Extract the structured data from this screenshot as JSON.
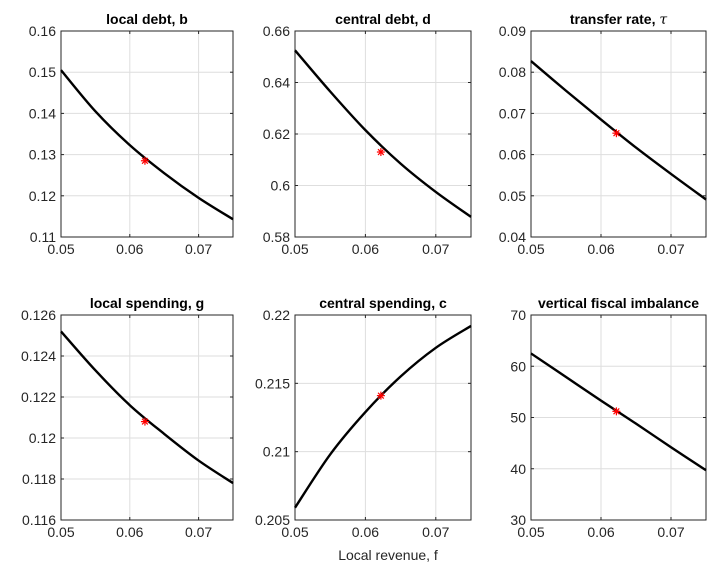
{
  "figure": {
    "xlabel": "Local revenue, f"
  },
  "chart_data": [
    {
      "type": "line",
      "title": "local debt, b",
      "title_math": "",
      "xlim": [
        0.05,
        0.075
      ],
      "ylim": [
        0.11,
        0.16
      ],
      "xticks": [
        "0.05",
        "0.06",
        "0.07"
      ],
      "xtick_values": [
        0.05,
        0.06,
        0.07
      ],
      "yticks": [
        "0.11",
        "0.12",
        "0.13",
        "0.14",
        "0.15",
        "0.16"
      ],
      "ytick_values": [
        0.11,
        0.12,
        0.13,
        0.14,
        0.15,
        0.16
      ],
      "grid": true,
      "series": [
        {
          "x": [
            0.05,
            0.055,
            0.06,
            0.065,
            0.07,
            0.075
          ],
          "y": [
            0.1505,
            0.1405,
            0.1323,
            0.1255,
            0.1195,
            0.1143
          ],
          "color": "#000000"
        }
      ],
      "marker": {
        "x": 0.0622,
        "y": 0.1285,
        "symbol": "*",
        "color": "#ff0000"
      }
    },
    {
      "type": "line",
      "title": "central debt, d",
      "title_math": "",
      "xlim": [
        0.05,
        0.075
      ],
      "ylim": [
        0.58,
        0.66
      ],
      "xticks": [
        "0.05",
        "0.06",
        "0.07"
      ],
      "xtick_values": [
        0.05,
        0.06,
        0.07
      ],
      "yticks": [
        "0.58",
        "0.6",
        "0.62",
        "0.64",
        "0.66"
      ],
      "ytick_values": [
        0.58,
        0.6,
        0.62,
        0.64,
        0.66
      ],
      "grid": true,
      "series": [
        {
          "x": [
            0.05,
            0.055,
            0.06,
            0.065,
            0.07,
            0.075
          ],
          "y": [
            0.6525,
            0.6365,
            0.6215,
            0.6085,
            0.5975,
            0.5878
          ],
          "color": "#000000"
        }
      ],
      "marker": {
        "x": 0.0622,
        "y": 0.613,
        "symbol": "*",
        "color": "#ff0000"
      }
    },
    {
      "type": "line",
      "title": "transfer rate, ",
      "title_math": "τ",
      "xlim": [
        0.05,
        0.075
      ],
      "ylim": [
        0.04,
        0.09
      ],
      "xticks": [
        "0.05",
        "0.06",
        "0.07"
      ],
      "xtick_values": [
        0.05,
        0.06,
        0.07
      ],
      "yticks": [
        "0.04",
        "0.05",
        "0.06",
        "0.07",
        "0.08",
        "0.09"
      ],
      "ytick_values": [
        0.04,
        0.05,
        0.06,
        0.07,
        0.08,
        0.09
      ],
      "grid": true,
      "series": [
        {
          "x": [
            0.05,
            0.055,
            0.06,
            0.065,
            0.07,
            0.075
          ],
          "y": [
            0.0827,
            0.0755,
            0.0685,
            0.0617,
            0.0553,
            0.0491
          ],
          "color": "#000000"
        }
      ],
      "marker": {
        "x": 0.0622,
        "y": 0.0652,
        "symbol": "*",
        "color": "#ff0000"
      }
    },
    {
      "type": "line",
      "title": "local spending, g",
      "title_math": "",
      "xlim": [
        0.05,
        0.075
      ],
      "ylim": [
        0.116,
        0.126
      ],
      "xticks": [
        "0.05",
        "0.06",
        "0.07"
      ],
      "xtick_values": [
        0.05,
        0.06,
        0.07
      ],
      "yticks": [
        "0.116",
        "0.118",
        "0.12",
        "0.122",
        "0.124",
        "0.126"
      ],
      "ytick_values": [
        0.116,
        0.118,
        0.12,
        0.122,
        0.124,
        0.126
      ],
      "grid": true,
      "series": [
        {
          "x": [
            0.05,
            0.055,
            0.06,
            0.065,
            0.07,
            0.075
          ],
          "y": [
            0.1252,
            0.1233,
            0.1216,
            0.1202,
            0.1189,
            0.1178
          ],
          "color": "#000000"
        }
      ],
      "marker": {
        "x": 0.0622,
        "y": 0.1208,
        "symbol": "*",
        "color": "#ff0000"
      }
    },
    {
      "type": "line",
      "title": "central spending, c",
      "title_math": "",
      "xlim": [
        0.05,
        0.075
      ],
      "ylim": [
        0.205,
        0.22
      ],
      "xticks": [
        "0.05",
        "0.06",
        "0.07"
      ],
      "xtick_values": [
        0.05,
        0.06,
        0.07
      ],
      "yticks": [
        "0.205",
        "0.21",
        "0.215",
        "0.22"
      ],
      "ytick_values": [
        0.205,
        0.21,
        0.215,
        0.22
      ],
      "grid": true,
      "series": [
        {
          "x": [
            0.05,
            0.055,
            0.06,
            0.065,
            0.07,
            0.075
          ],
          "y": [
            0.2059,
            0.2098,
            0.2129,
            0.2155,
            0.2176,
            0.2192
          ],
          "color": "#000000"
        }
      ],
      "marker": {
        "x": 0.0622,
        "y": 0.2141,
        "symbol": "*",
        "color": "#ff0000"
      }
    },
    {
      "type": "line",
      "title": "vertical fiscal imbalance",
      "title_math": "",
      "xlim": [
        0.05,
        0.075
      ],
      "ylim": [
        30,
        70
      ],
      "xticks": [
        "0.05",
        "0.06",
        "0.07"
      ],
      "xtick_values": [
        0.05,
        0.06,
        0.07
      ],
      "yticks": [
        "30",
        "40",
        "50",
        "60",
        "70"
      ],
      "ytick_values": [
        30,
        40,
        50,
        60,
        70
      ],
      "grid": true,
      "series": [
        {
          "x": [
            0.05,
            0.055,
            0.06,
            0.065,
            0.07,
            0.075
          ],
          "y": [
            62.5,
            57.9,
            53.3,
            48.8,
            44.2,
            39.7
          ],
          "color": "#000000"
        }
      ],
      "marker": {
        "x": 0.0622,
        "y": 51.2,
        "symbol": "*",
        "color": "#ff0000"
      }
    }
  ]
}
